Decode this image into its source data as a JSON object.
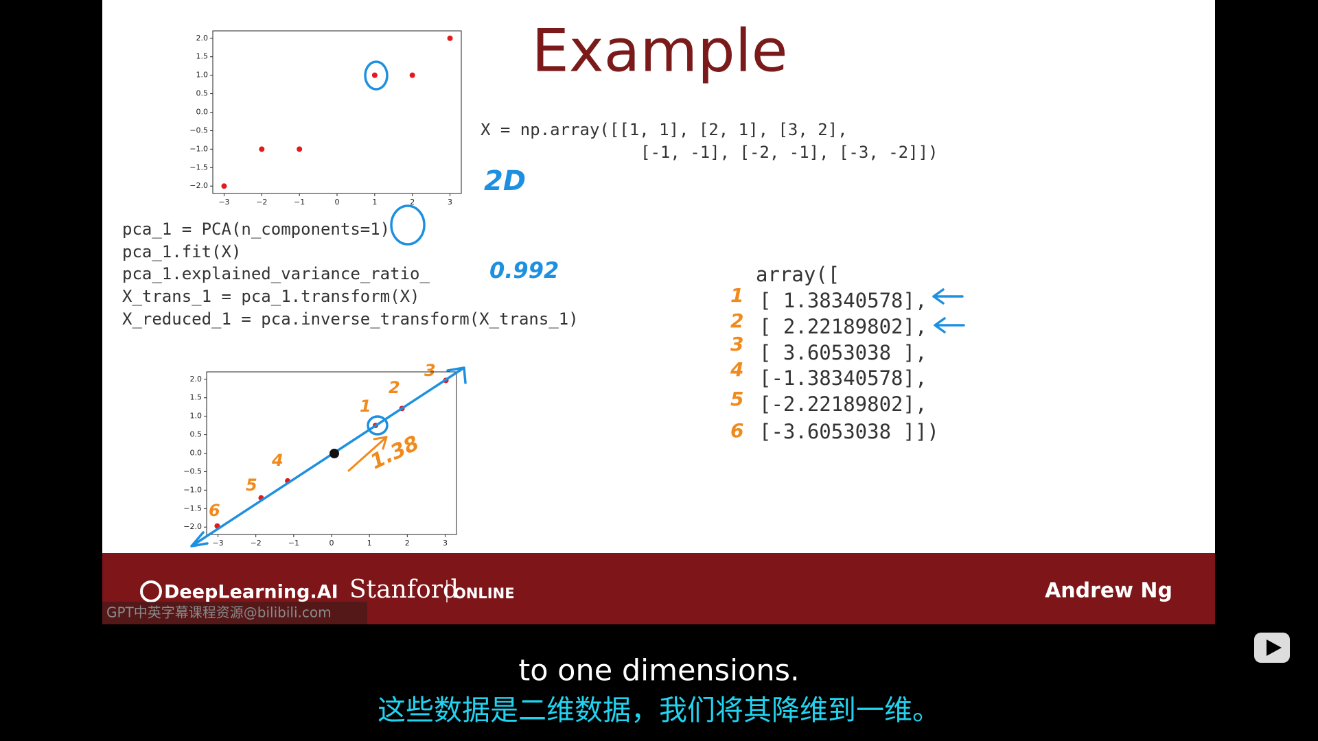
{
  "slide": {
    "title": "Example",
    "code_array": [
      "X = np.array([[1, 1], [2, 1], [3, 2],",
      "[-1, -1], [-2, -1], [-3, -2]])"
    ],
    "code_pca": [
      "pca_1 = PCA(n_components=1)",
      "pca_1.fit(X)",
      "pca_1.explained_variance_ratio_",
      "X_trans_1 = pca_1.transform(X)",
      "X_reduced_1 = pca.inverse_transform(X_trans_1)"
    ],
    "output": [
      "array([",
      "[ 1.38340578],",
      "[ 2.22189802],",
      "[ 3.6053038 ],",
      "[-1.38340578],",
      "[-2.22189802],",
      "[-3.6053038 ]])"
    ],
    "handwriting": {
      "dims": "2D",
      "ratio": "0.992",
      "distance": "1.38",
      "row_numbers": [
        "1",
        "2",
        "3",
        "4",
        "5",
        "6"
      ],
      "point_numbers": [
        "1",
        "2",
        "3",
        "4",
        "5",
        "6"
      ]
    },
    "plots": [
      {
        "type": "scatter",
        "color": "#e31a1c",
        "x": [
          1,
          2,
          3,
          -1,
          -2,
          -3
        ],
        "y": [
          1,
          1,
          2,
          -1,
          -1,
          -2
        ],
        "xlim": [
          -3.3,
          3.3
        ],
        "ylim": [
          -2.2,
          2.2
        ],
        "xticks": [
          {
            "value": -3,
            "label": "−3"
          },
          {
            "value": -2,
            "label": "−2"
          },
          {
            "value": -1,
            "label": "−1"
          },
          0,
          1,
          2,
          3
        ],
        "yticks": [
          {
            "value": -2,
            "label": "−2.0"
          },
          {
            "value": -1.5,
            "label": "−1.5"
          },
          {
            "value": -1,
            "label": "−1.0"
          },
          {
            "value": -0.5,
            "label": "−0.5"
          },
          {
            "value": 0,
            "label": "0.0"
          },
          {
            "value": 0.5,
            "label": "0.5"
          },
          {
            "value": 1,
            "label": "1.0"
          },
          {
            "value": 1.5,
            "label": "1.5"
          },
          {
            "value": 2,
            "label": "2.0"
          }
        ]
      },
      {
        "type": "scatter",
        "color": "#e31a1c",
        "x": [
          1.16,
          1.86,
          3.02,
          -1.16,
          -1.86,
          -3.02
        ],
        "y": [
          0.75,
          1.21,
          1.97,
          -0.75,
          -1.21,
          -1.97
        ],
        "xlim": [
          -3.3,
          3.3
        ],
        "ylim": [
          -2.2,
          2.2
        ],
        "xticks": [
          {
            "value": -3,
            "label": "−3"
          },
          {
            "value": -2,
            "label": "−2"
          },
          {
            "value": -1,
            "label": "−1"
          },
          0,
          1,
          2,
          3
        ],
        "yticks": [
          {
            "value": -2,
            "label": "−2.0"
          },
          {
            "value": -1.5,
            "label": "−1.5"
          },
          {
            "value": -1,
            "label": "−1.0"
          },
          {
            "value": -0.5,
            "label": "−0.5"
          },
          {
            "value": 0,
            "label": "0.0"
          },
          {
            "value": 0.5,
            "label": "0.5"
          },
          {
            "value": 1,
            "label": "1.0"
          },
          {
            "value": 1.5,
            "label": "1.5"
          },
          {
            "value": 2,
            "label": "2.0"
          }
        ]
      }
    ]
  },
  "footer": {
    "brand": "DeepLearning.AI",
    "university": "Stanford",
    "online": "ONLINE",
    "presenter": "Andrew Ng"
  },
  "watermark": "GPT中英字幕课程资源@bilibili.com",
  "subtitles": {
    "en": "to one dimensions.",
    "zh": "这些数据是二维数据，我们将其降维到一维。"
  }
}
